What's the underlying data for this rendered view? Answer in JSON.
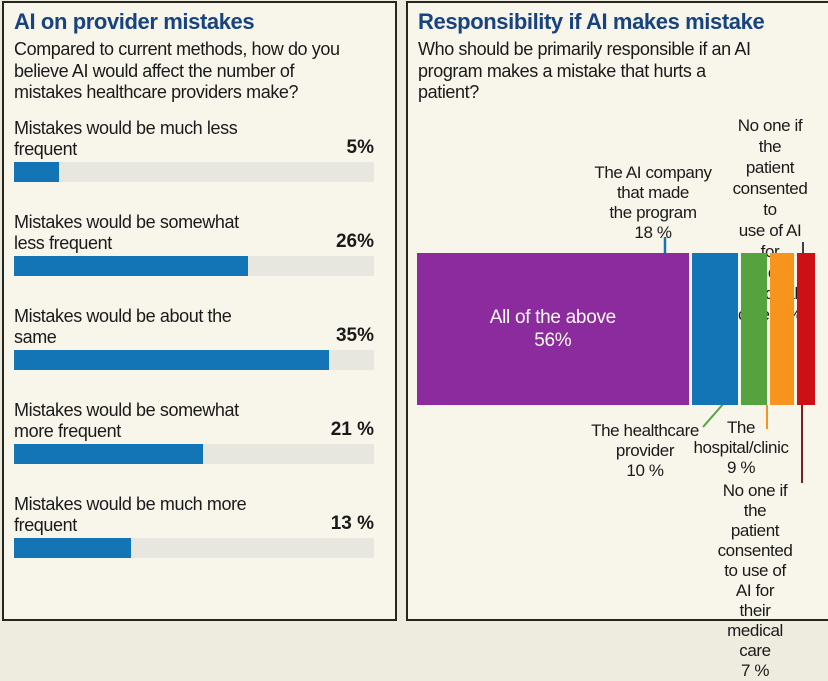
{
  "colors": {
    "accent_blue": "#1375b5",
    "purple": "#8b2b9e",
    "green": "#55a33f",
    "orange": "#f7941e",
    "red": "#cc1016",
    "track_gray": "#e7e6df",
    "title_navy": "#17437f",
    "leader_dark": "#3a4347",
    "leader_maroon": "#7e1f1f",
    "panel_bg": "#f8f5ea",
    "page_bg": "#eeebdf",
    "bar_text_white": "#fcfbf6"
  },
  "left_panel": {
    "title": "AI on provider mistakes",
    "subtitle": "Compared to current methods, how do you\nbelieve AI would affect the number of\nmistakes healthcare providers make?",
    "bars": [
      {
        "label": "Mistakes would be much less\nfrequent",
        "value": 5,
        "value_label": "5%"
      },
      {
        "label": "Mistakes would be somewhat\nless frequent",
        "value": 26,
        "value_label": "26%"
      },
      {
        "label": "Mistakes would be about the\nsame",
        "value": 35,
        "value_label": "35%"
      },
      {
        "label": "Mistakes would be somewhat\nmore frequent",
        "value": 21,
        "value_label": "21 %"
      },
      {
        "label": "Mistakes would be much more\nfrequent",
        "value": 13,
        "value_label": "13 %"
      }
    ]
  },
  "right_panel": {
    "title": "Responsibility if AI makes mistake",
    "subtitle": "Who should be primarily responsible if an AI\nprogram makes a mistake that hurts a\npatient?",
    "segments": [
      {
        "label": "All of the above",
        "value": 56,
        "value_label": "56%",
        "color": "#8b2b9e"
      },
      {
        "label": "The AI company that made the program",
        "value": 18,
        "value_label": "18 %",
        "color": "#1375b5"
      },
      {
        "label": "The healthcare provider",
        "value": 10,
        "value_label": "10 %",
        "color": "#55a33f"
      },
      {
        "label": "The hospital/clinic",
        "value": 9,
        "value_label": "9 %",
        "color": "#f7941e"
      },
      {
        "label": "No one if the patient consented to use of AI for their medical care",
        "value": 7,
        "value_label": "7 %",
        "color": "#cc1016"
      }
    ],
    "callouts": {
      "ai_company": "The AI company\nthat made\nthe program\n18 %",
      "no_one_top": "No one if the\npatient\nconsented to\nuse of AI for\ntheir medical\ncare 7 %",
      "healthcare_provider": "The healthcare\nprovider\n10 %",
      "hospital_clinic": "The\nhospital/clinic\n9 %",
      "no_one_bottom": "No one if the\npatient consented\nto use of AI for\ntheir medical care\n7 %",
      "all_of_the_above": "All of the above\n56%"
    }
  },
  "chart_data": [
    {
      "type": "bar",
      "orientation": "horizontal",
      "title": "AI on provider mistakes",
      "subtitle": "Compared to current methods, how do you believe AI would affect the number of mistakes healthcare providers make?",
      "categories": [
        "Mistakes would be much less frequent",
        "Mistakes would be somewhat less frequent",
        "Mistakes would be about the same",
        "Mistakes would be somewhat more frequent",
        "Mistakes would be much more frequent"
      ],
      "values": [
        5,
        26,
        35,
        21,
        13
      ],
      "unit": "%",
      "xlim": [
        0,
        40
      ],
      "grid": false,
      "bar_color": "#1375b5"
    },
    {
      "type": "bar",
      "subtype": "stacked-single-row",
      "title": "Responsibility if AI makes mistake",
      "subtitle": "Who should be primarily responsible if an AI program makes a mistake that hurts a patient?",
      "categories": [
        "All of the above",
        "The AI company that made the program",
        "The healthcare provider",
        "The hospital/clinic",
        "No one if the patient consented to use of AI for their medical care"
      ],
      "values": [
        56,
        18,
        10,
        9,
        7
      ],
      "unit": "%",
      "colors": [
        "#8b2b9e",
        "#1375b5",
        "#55a33f",
        "#f7941e",
        "#cc1016"
      ],
      "legend_position": "callout-labels"
    }
  ]
}
